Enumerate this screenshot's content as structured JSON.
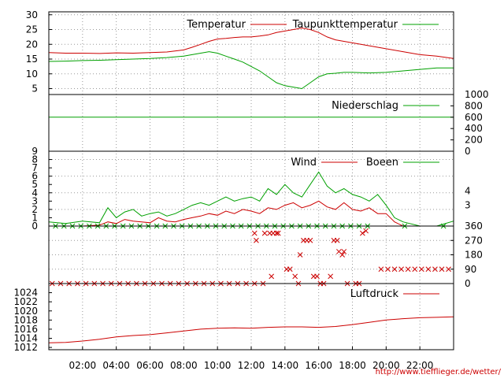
{
  "source_url": "http://www.tiefflieger.de/wetter/",
  "x_axis": {
    "range": [
      0,
      24
    ],
    "ticks": [
      2,
      4,
      6,
      8,
      10,
      12,
      14,
      16,
      18,
      20,
      22
    ],
    "tick_labels": [
      "02:00",
      "04:00",
      "06:00",
      "08:00",
      "10:00",
      "12:00",
      "14:00",
      "16:00",
      "18:00",
      "20:00",
      "22:00"
    ]
  },
  "colors": {
    "red": "#cc0000",
    "green": "#00a000",
    "grid": "#999999",
    "axis": "#000000",
    "url": "#cc0000"
  },
  "chart_data": [
    {
      "id": "temperature",
      "type": "line",
      "ylim": [
        3,
        31
      ],
      "y_ticks_left": [
        5,
        10,
        15,
        20,
        25,
        30
      ],
      "grid_y": [
        5,
        10,
        15,
        20,
        25,
        30
      ],
      "x": [
        0,
        1,
        2,
        3,
        4,
        5,
        6,
        7,
        8,
        8.5,
        9,
        9.5,
        10,
        10.5,
        11,
        11.5,
        12,
        12.5,
        13,
        13.5,
        14,
        14.5,
        15,
        15.5,
        16,
        16.5,
        17,
        17.5,
        18,
        19,
        20,
        21,
        22,
        23,
        24
      ],
      "series": [
        {
          "name": "Temperatur",
          "color": "red",
          "values": [
            17.2,
            17,
            17,
            16.9,
            17.1,
            17,
            17.2,
            17.4,
            18.1,
            19,
            20,
            21,
            21.8,
            22,
            22.3,
            22.5,
            22.5,
            22.8,
            23.2,
            24,
            24.5,
            25,
            25.5,
            25,
            24,
            22.5,
            21.5,
            21,
            20.5,
            19.5,
            18.5,
            17.5,
            16.5,
            16,
            15.2
          ]
        },
        {
          "name": "Taupunkttemperatur",
          "color": "green",
          "values": [
            14.2,
            14.3,
            14.5,
            14.6,
            14.8,
            15,
            15.2,
            15.5,
            16,
            16.5,
            17,
            17.5,
            17,
            16,
            15,
            14,
            12.5,
            11,
            9,
            7,
            6,
            5.5,
            5,
            7,
            9,
            10,
            10.2,
            10.5,
            10.5,
            10.3,
            10.5,
            11,
            11.5,
            12,
            12
          ]
        }
      ]
    },
    {
      "id": "precipitation",
      "type": "line",
      "ylim": [
        0,
        1000
      ],
      "y_ticks_right": [
        0,
        200,
        400,
        600,
        800,
        1000
      ],
      "grid_y": [],
      "x": [
        0,
        24
      ],
      "series": [
        {
          "name": "Niederschlag",
          "color": "green",
          "values": [
            600,
            600
          ]
        }
      ]
    },
    {
      "id": "wind",
      "type": "line",
      "ylim": [
        0,
        9
      ],
      "y_ticks_left": [
        0,
        1,
        2,
        3,
        4,
        5,
        6,
        7,
        8,
        9
      ],
      "right_ticks": [
        {
          "value": 4.2,
          "label": "4"
        },
        {
          "value": 2.5,
          "label": "3"
        }
      ],
      "grid_y": [
        2,
        4,
        6,
        8
      ],
      "x": [
        0,
        1,
        2,
        3,
        3.5,
        4,
        4.5,
        5,
        5.5,
        6,
        6.5,
        7,
        7.5,
        8,
        8.5,
        9,
        9.5,
        10,
        10.5,
        11,
        11.5,
        12,
        12.5,
        13,
        13.5,
        14,
        14.5,
        15,
        15.5,
        16,
        16.5,
        17,
        17.5,
        18,
        18.5,
        19,
        19.5,
        20,
        20.5,
        21,
        22,
        23,
        24
      ],
      "series": [
        {
          "name": "Wind",
          "color": "red",
          "values": [
            0,
            0,
            0,
            0.1,
            0.5,
            0.3,
            0.8,
            0.6,
            0.5,
            0.4,
            1,
            0.6,
            0.5,
            0.8,
            1,
            1.2,
            1.5,
            1.3,
            1.8,
            1.5,
            2,
            1.8,
            1.5,
            2.2,
            2,
            2.5,
            2.8,
            2.2,
            2.5,
            3,
            2.3,
            2,
            2.8,
            2,
            1.8,
            2.2,
            1.5,
            1.5,
            0.5,
            0,
            0,
            0,
            0
          ]
        },
        {
          "name": "Boeen",
          "color": "green",
          "values": [
            0.5,
            0.3,
            0.6,
            0.4,
            2.2,
            1,
            1.7,
            2,
            1.2,
            1.5,
            1.7,
            1.2,
            1.5,
            2,
            2.5,
            2.8,
            2.5,
            3,
            3.5,
            3,
            3.3,
            3.5,
            3,
            4.5,
            3.8,
            5,
            4,
            3.5,
            5,
            6.5,
            4.8,
            4,
            4.5,
            3.8,
            3.5,
            3,
            3.8,
            2.5,
            1,
            0.5,
            0,
            0,
            0.6
          ]
        }
      ]
    },
    {
      "id": "wind_direction",
      "type": "scatter",
      "ylim": [
        0,
        360
      ],
      "y_ticks_right": [
        0,
        90,
        180,
        270,
        360
      ],
      "grid_y": [
        90,
        180,
        270,
        360
      ],
      "series": [
        {
          "name": "",
          "color": "red",
          "marker": "x",
          "points": [
            [
              0.2,
              0
            ],
            [
              0.7,
              0
            ],
            [
              1.2,
              0
            ],
            [
              1.7,
              0
            ],
            [
              2.2,
              0
            ],
            [
              2.7,
              0
            ],
            [
              3.2,
              0
            ],
            [
              3.7,
              0
            ],
            [
              4.2,
              0
            ],
            [
              4.7,
              0
            ],
            [
              5.2,
              0
            ],
            [
              5.7,
              0
            ],
            [
              6.2,
              0
            ],
            [
              6.7,
              0
            ],
            [
              7.2,
              0
            ],
            [
              7.7,
              0
            ],
            [
              8.2,
              0
            ],
            [
              8.7,
              0
            ],
            [
              9.2,
              0
            ],
            [
              9.7,
              0
            ],
            [
              10.2,
              0
            ],
            [
              10.7,
              0
            ],
            [
              11.2,
              0
            ],
            [
              11.7,
              0
            ],
            [
              12.2,
              0
            ],
            [
              12.7,
              0
            ],
            [
              14.8,
              0
            ],
            [
              16.3,
              0
            ],
            [
              17.7,
              0
            ],
            [
              18.2,
              0
            ],
            [
              12.2,
              315
            ],
            [
              12.3,
              270
            ],
            [
              12.8,
              315
            ],
            [
              13.1,
              315
            ],
            [
              13.3,
              315
            ],
            [
              13.5,
              315
            ],
            [
              13.6,
              315
            ],
            [
              13.2,
              45
            ],
            [
              14.1,
              90
            ],
            [
              14.3,
              90
            ],
            [
              14.6,
              45
            ],
            [
              14.9,
              180
            ],
            [
              15.1,
              270
            ],
            [
              15.3,
              270
            ],
            [
              15.5,
              270
            ],
            [
              15.7,
              45
            ],
            [
              15.9,
              45
            ],
            [
              16.1,
              0
            ],
            [
              16.7,
              45
            ],
            [
              16.9,
              270
            ],
            [
              17.1,
              270
            ],
            [
              17.2,
              200
            ],
            [
              17.4,
              180
            ],
            [
              17.5,
              200
            ],
            [
              18.4,
              0
            ],
            [
              18.6,
              315
            ],
            [
              18.8,
              330
            ],
            [
              19.7,
              90
            ],
            [
              20.1,
              90
            ],
            [
              20.5,
              90
            ],
            [
              20.9,
              90
            ],
            [
              21.3,
              90
            ],
            [
              21.7,
              90
            ],
            [
              22.1,
              90
            ],
            [
              22.5,
              90
            ],
            [
              22.9,
              90
            ],
            [
              23.3,
              90
            ],
            [
              23.7,
              90
            ]
          ]
        },
        {
          "name": "",
          "color": "green",
          "marker": "x",
          "points": [
            [
              0.4,
              360
            ],
            [
              0.9,
              360
            ],
            [
              1.4,
              360
            ],
            [
              1.9,
              360
            ],
            [
              2.4,
              360
            ],
            [
              2.9,
              360
            ],
            [
              3.4,
              360
            ],
            [
              3.9,
              360
            ],
            [
              4.4,
              360
            ],
            [
              4.9,
              360
            ],
            [
              5.4,
              360
            ],
            [
              5.9,
              360
            ],
            [
              6.4,
              360
            ],
            [
              6.9,
              360
            ],
            [
              7.4,
              360
            ],
            [
              7.9,
              360
            ],
            [
              8.4,
              360
            ],
            [
              8.9,
              360
            ],
            [
              9.4,
              360
            ],
            [
              9.9,
              360
            ],
            [
              10.4,
              360
            ],
            [
              10.9,
              360
            ],
            [
              11.4,
              360
            ],
            [
              11.9,
              360
            ],
            [
              12.4,
              360
            ],
            [
              12.9,
              360
            ],
            [
              13.4,
              360
            ],
            [
              13.9,
              360
            ],
            [
              14.4,
              360
            ],
            [
              14.9,
              360
            ],
            [
              15.4,
              360
            ],
            [
              15.9,
              360
            ],
            [
              16.4,
              360
            ],
            [
              16.9,
              360
            ],
            [
              17.4,
              360
            ],
            [
              17.9,
              360
            ],
            [
              18.4,
              360
            ],
            [
              18.9,
              360
            ],
            [
              21.1,
              360
            ],
            [
              23.4,
              360
            ]
          ]
        }
      ]
    },
    {
      "id": "pressure",
      "type": "line",
      "ylim": [
        1011.5,
        1026
      ],
      "y_ticks_left": [
        1012,
        1014,
        1016,
        1018,
        1020,
        1022,
        1024
      ],
      "grid_y": [],
      "x": [
        0,
        1,
        2,
        3,
        4,
        5,
        6,
        7,
        8,
        9,
        10,
        11,
        12,
        13,
        14,
        15,
        16,
        17,
        18,
        19,
        20,
        21,
        22,
        23,
        24
      ],
      "series": [
        {
          "name": "Luftdruck",
          "color": "red",
          "values": [
            1013,
            1013.1,
            1013.4,
            1013.8,
            1014.3,
            1014.6,
            1014.8,
            1015.2,
            1015.6,
            1016,
            1016.2,
            1016.3,
            1016.2,
            1016.4,
            1016.5,
            1016.5,
            1016.4,
            1016.6,
            1017,
            1017.5,
            1018,
            1018.3,
            1018.5,
            1018.6,
            1018.7
          ]
        }
      ]
    }
  ],
  "legends": {
    "temperature": [
      {
        "label": "Temperatur",
        "color": "red"
      },
      {
        "label": "Taupunkttemperatur",
        "color": "green"
      }
    ],
    "precipitation": [
      {
        "label": "Niederschlag",
        "color": "green"
      }
    ],
    "wind": [
      {
        "label": "Wind",
        "color": "red"
      },
      {
        "label": "Boeen",
        "color": "green"
      }
    ],
    "pressure": [
      {
        "label": "Luftdruck",
        "color": "red"
      }
    ]
  }
}
